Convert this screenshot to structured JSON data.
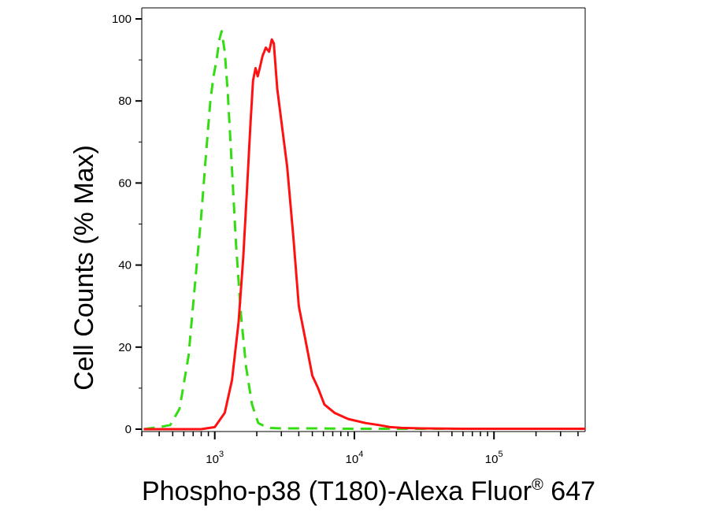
{
  "chart_data": {
    "type": "line",
    "title": "",
    "xlabel": "Phospho-p38 (T180)-Alexa Fluor",
    "xlabel_superscript": "®",
    "xlabel_suffix": " 647",
    "ylabel": "Cell Counts (% Max)",
    "xscale": "log",
    "xlim": [
      300,
      450000
    ],
    "ylim": [
      0,
      104
    ],
    "x_ticks": [
      {
        "base": "10",
        "exp": "3",
        "value": 1000
      },
      {
        "base": "10",
        "exp": "4",
        "value": 10000
      },
      {
        "base": "10",
        "exp": "5",
        "value": 100000
      }
    ],
    "y_ticks": [
      "0",
      "20",
      "40",
      "60",
      "80",
      "100"
    ],
    "grid": false,
    "series": [
      {
        "color": "#33dd11",
        "style": "dashed",
        "x": [
          310,
          400,
          480,
          560,
          650,
          720,
          800,
          870,
          930,
          980,
          1030,
          1080,
          1120,
          1180,
          1240,
          1320,
          1420,
          1540,
          1680,
          1850,
          2050,
          2400,
          3000,
          5000,
          10000,
          30000,
          100000,
          450000
        ],
        "y": [
          0,
          0.5,
          1,
          5,
          18,
          35,
          52,
          68,
          80,
          86,
          90,
          95,
          97,
          92,
          82,
          65,
          45,
          28,
          15,
          6,
          1.5,
          0.3,
          0.2,
          0.2,
          0.1,
          0.1,
          0.1,
          0.1
        ]
      },
      {
        "color": "#ff1111",
        "style": "solid",
        "x": [
          310,
          800,
          1000,
          1180,
          1330,
          1480,
          1600,
          1700,
          1800,
          1880,
          1960,
          2030,
          2100,
          2200,
          2320,
          2450,
          2560,
          2650,
          2800,
          3000,
          3300,
          3650,
          4000,
          4450,
          5000,
          5500,
          6100,
          7200,
          9000,
          12000,
          15000,
          18000,
          22000,
          30000,
          60000,
          150000,
          450000
        ],
        "y": [
          0,
          0,
          0.5,
          4,
          12,
          26,
          42,
          58,
          74,
          85,
          88,
          86,
          88,
          91,
          93,
          92,
          95,
          94,
          83,
          75,
          64,
          47,
          30,
          22,
          13,
          10,
          6,
          4,
          2.5,
          1.5,
          1,
          0.5,
          0.3,
          0.2,
          0.1,
          0.1,
          0.1
        ]
      }
    ]
  }
}
